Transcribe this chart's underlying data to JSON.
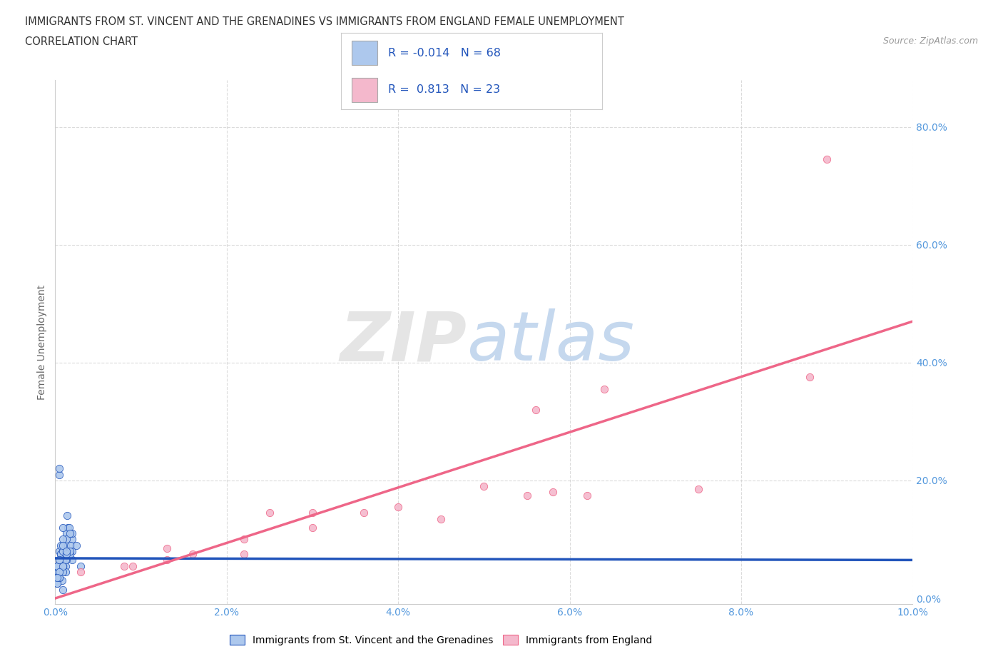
{
  "title_line1": "IMMIGRANTS FROM ST. VINCENT AND THE GRENADINES VS IMMIGRANTS FROM ENGLAND FEMALE UNEMPLOYMENT",
  "title_line2": "CORRELATION CHART",
  "source": "Source: ZipAtlas.com",
  "ylabel": "Female Unemployment",
  "blue_color": "#adc8ed",
  "pink_color": "#f4b8cc",
  "blue_line_color": "#2255bb",
  "pink_line_color": "#ee6688",
  "blue_r": -0.014,
  "blue_n": 68,
  "pink_r": 0.813,
  "pink_n": 23,
  "xlim": [
    0.0,
    0.1
  ],
  "ylim": [
    -0.01,
    0.88
  ],
  "xticks": [
    0.0,
    0.02,
    0.04,
    0.06,
    0.08,
    0.1
  ],
  "yticks": [
    0.0,
    0.2,
    0.4,
    0.6,
    0.8
  ],
  "xtick_labels": [
    "0.0%",
    "2.0%",
    "4.0%",
    "6.0%",
    "8.0%",
    "10.0%"
  ],
  "ytick_labels": [
    "0.0%",
    "20.0%",
    "40.0%",
    "60.0%",
    "80.0%"
  ],
  "blue_scatter_x": [
    0.0005,
    0.001,
    0.0008,
    0.0015,
    0.002,
    0.0012,
    0.0008,
    0.0003,
    0.002,
    0.0007,
    0.0013,
    0.001,
    0.003,
    0.0006,
    0.001,
    0.0014,
    0.0007,
    0.0002,
    0.0018,
    0.001,
    0.0006,
    0.0013,
    0.002,
    0.001,
    0.0006,
    0.0002,
    0.0016,
    0.0012,
    0.0009,
    0.0005,
    0.0025,
    0.0013,
    0.0009,
    0.0006,
    0.0002,
    0.002,
    0.0012,
    0.0009,
    0.0017,
    0.0005,
    0.0009,
    0.0006,
    0.0012,
    0.0009,
    0.0005,
    0.0017,
    0.0002,
    0.0009,
    0.0006,
    0.0012,
    0.0009,
    0.0005,
    0.0012,
    0.0009,
    0.0005,
    0.0002,
    0.0009,
    0.0005,
    0.0013,
    0.0009,
    0.0005,
    0.0009,
    0.0013,
    0.0017,
    0.0005,
    0.0009,
    0.0005,
    0.0002
  ],
  "blue_scatter_y": [
    0.055,
    0.075,
    0.085,
    0.12,
    0.065,
    0.09,
    0.03,
    0.045,
    0.1,
    0.065,
    0.11,
    0.075,
    0.055,
    0.045,
    0.08,
    0.14,
    0.065,
    0.025,
    0.09,
    0.055,
    0.075,
    0.1,
    0.08,
    0.065,
    0.045,
    0.035,
    0.12,
    0.075,
    0.055,
    0.08,
    0.09,
    0.065,
    0.045,
    0.075,
    0.025,
    0.11,
    0.055,
    0.08,
    0.075,
    0.035,
    0.065,
    0.09,
    0.045,
    0.055,
    0.21,
    0.08,
    0.055,
    0.12,
    0.075,
    0.065,
    0.1,
    0.045,
    0.075,
    0.08,
    0.035,
    0.055,
    0.09,
    0.065,
    0.075,
    0.045,
    0.22,
    0.055,
    0.08,
    0.11,
    0.065,
    0.015,
    0.045,
    0.035
  ],
  "pink_scatter_x": [
    0.003,
    0.013,
    0.009,
    0.022,
    0.016,
    0.03,
    0.013,
    0.025,
    0.008,
    0.036,
    0.05,
    0.058,
    0.062,
    0.075,
    0.022,
    0.04,
    0.055,
    0.03,
    0.045,
    0.056,
    0.064,
    0.09,
    0.088
  ],
  "pink_scatter_y": [
    0.045,
    0.065,
    0.055,
    0.1,
    0.075,
    0.145,
    0.085,
    0.145,
    0.055,
    0.145,
    0.19,
    0.18,
    0.175,
    0.185,
    0.075,
    0.155,
    0.175,
    0.12,
    0.135,
    0.32,
    0.355,
    0.745,
    0.375
  ],
  "blue_trend_x": [
    0.0,
    0.1
  ],
  "blue_trend_y": [
    0.068,
    0.065
  ],
  "pink_trend_x": [
    0.0,
    0.1
  ],
  "pink_trend_y": [
    0.0,
    0.47
  ],
  "legend_label_blue": "Immigrants from St. Vincent and the Grenadines",
  "legend_label_pink": "Immigrants from England",
  "grid_color": "#cccccc",
  "background_color": "#ffffff",
  "title_color": "#333333",
  "axis_label_color": "#5599dd",
  "ylabel_color": "#666666"
}
